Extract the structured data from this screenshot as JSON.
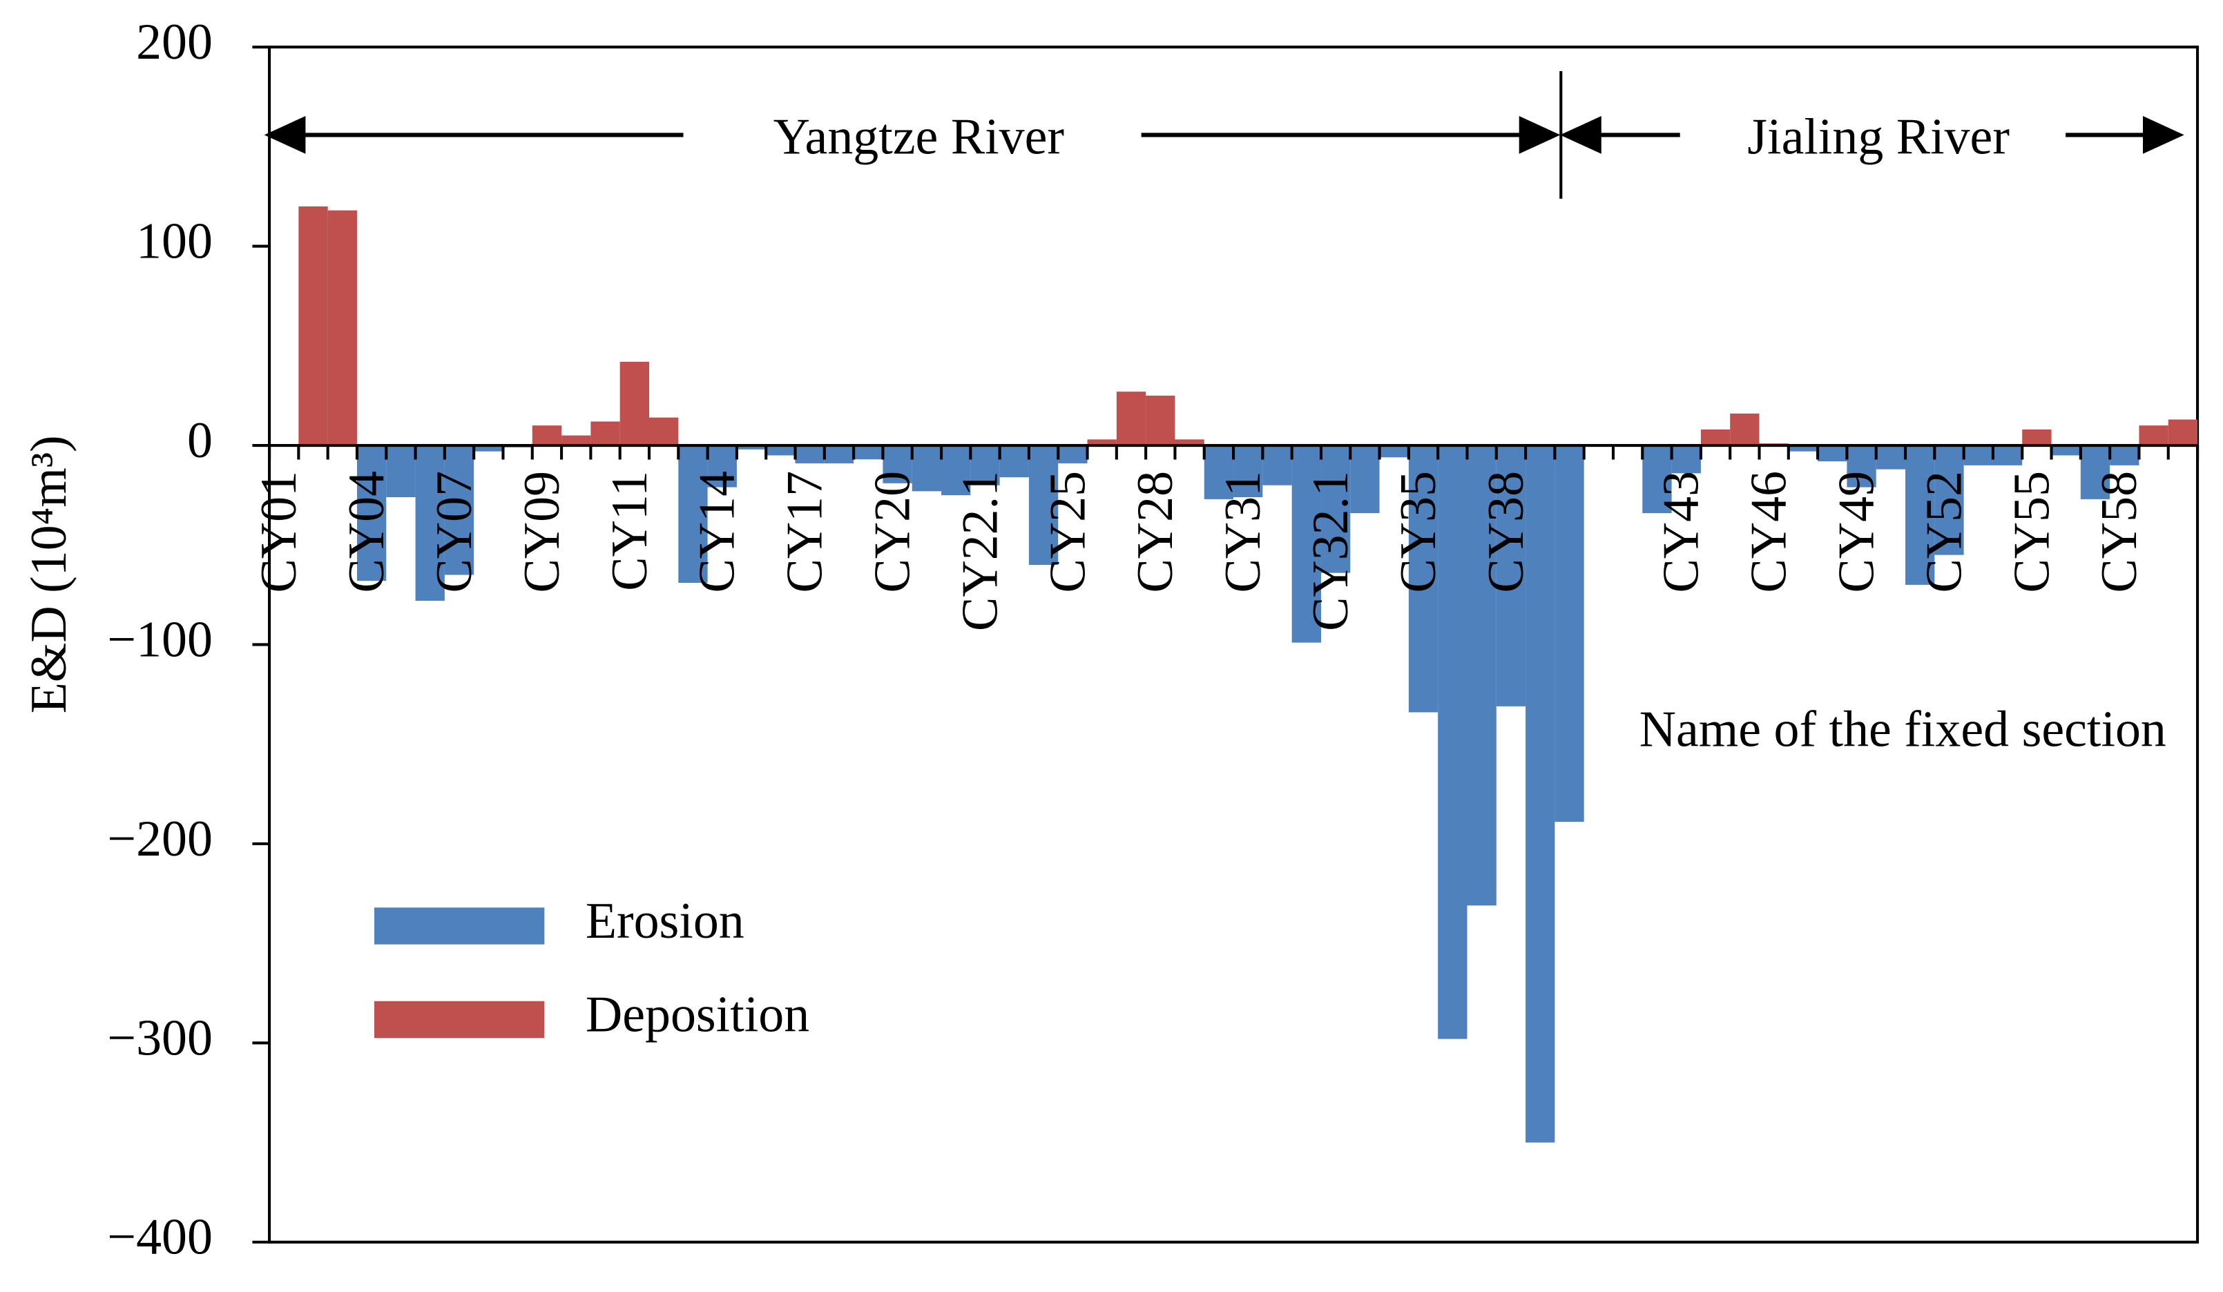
{
  "chart_data": {
    "type": "bar",
    "x_label": "Name of the fixed section",
    "y_label": "E&D (10⁴m³)",
    "annotations": [
      "Yangtze River",
      "Jialing River"
    ],
    "categories": [
      "CY01",
      null,
      null,
      "CY04",
      null,
      null,
      "CY07",
      null,
      null,
      "CY09",
      null,
      null,
      "CY11",
      null,
      null,
      "CY14",
      null,
      null,
      "CY17",
      null,
      null,
      "CY20",
      null,
      null,
      "CY22.1",
      null,
      null,
      "CY25",
      null,
      null,
      "CY28",
      null,
      null,
      "CY31",
      null,
      null,
      "CY32.1",
      null,
      null,
      "CY35",
      null,
      null,
      "CY38",
      null,
      null,
      null,
      null,
      null,
      "CY43",
      null,
      null,
      "CY46",
      null,
      null,
      "CY49",
      null,
      null,
      "CY52",
      null,
      null,
      "CY55",
      null,
      null,
      "CY58",
      null,
      null
    ],
    "series": [
      {
        "name": "Erosion",
        "color": "#4f81bd",
        "values": [
          null,
          null,
          null,
          -68,
          -26,
          -78,
          -65,
          -3,
          -1,
          null,
          null,
          null,
          null,
          null,
          -69,
          -21,
          -2,
          -5,
          -9,
          -9,
          -7,
          -19,
          -23,
          -25,
          -20,
          -16,
          -60,
          -9,
          null,
          null,
          null,
          null,
          -27,
          -26,
          -20,
          -99,
          -64,
          -34,
          -6,
          -134,
          -298,
          -231,
          -131,
          -350,
          -189,
          null,
          null,
          -34,
          -14,
          null,
          null,
          null,
          -3,
          -8,
          -21,
          -12,
          -70,
          -55,
          -10,
          -10,
          null,
          -5,
          -27,
          -10,
          null,
          null
        ]
      },
      {
        "name": "Deposition",
        "color": "#c0504d",
        "values": [
          null,
          120,
          118,
          null,
          null,
          null,
          null,
          null,
          null,
          10,
          5,
          12,
          42,
          14,
          null,
          null,
          null,
          null,
          null,
          null,
          null,
          null,
          null,
          null,
          null,
          null,
          null,
          null,
          3,
          27,
          25,
          3,
          null,
          null,
          null,
          null,
          null,
          null,
          null,
          null,
          null,
          null,
          null,
          null,
          null,
          null,
          null,
          null,
          null,
          8,
          16,
          1,
          null,
          null,
          null,
          null,
          null,
          null,
          null,
          null,
          8,
          null,
          null,
          null,
          10,
          13
        ]
      }
    ],
    "ylim": [
      -400,
      200
    ],
    "yticks": [
      200,
      100,
      0,
      {
        "value": -100,
        "label": "−100"
      },
      {
        "value": -200,
        "label": "−200"
      },
      {
        "value": -300,
        "label": "−300"
      },
      {
        "value": -400,
        "label": "−400"
      }
    ]
  }
}
